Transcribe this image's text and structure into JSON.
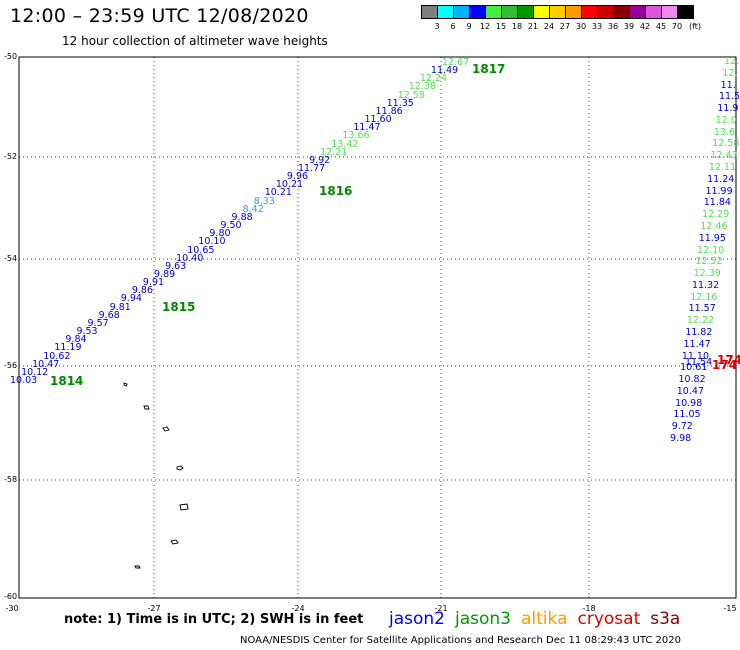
{
  "header": {
    "title": "12:00 – 23:59 UTC 12/08/2020",
    "subtitle": "12 hour collection of altimeter wave heights"
  },
  "colorbar": {
    "colors": [
      "#7f7f7f",
      "#00ffff",
      "#00b2ff",
      "#0000ff",
      "#44ee44",
      "#33bb33",
      "#009900",
      "#ffff00",
      "#ffcc00",
      "#ff9900",
      "#ff0000",
      "#cc0000",
      "#880000",
      "#990099",
      "#dd55dd",
      "#ee88ee",
      "#000000"
    ],
    "labels": [
      "3",
      "6",
      "9",
      "12",
      "15",
      "18",
      "21",
      "24",
      "27",
      "30",
      "33",
      "36",
      "39",
      "42",
      "45",
      "70",
      "(ft)"
    ]
  },
  "axes": {
    "y_labels": [
      "-50",
      "-52",
      "-54",
      "-56",
      "-58",
      "-60"
    ],
    "x_labels": [
      "-30",
      "-27",
      "-24",
      "-21",
      "-18",
      "-15"
    ]
  },
  "swaths": {
    "diagonal": [
      {
        "t": "10.03",
        "c": "#0000cc"
      },
      {
        "t": "10.12",
        "c": "#0000cc"
      },
      {
        "t": "10.47",
        "c": "#0000cc"
      },
      {
        "t": "10.62",
        "c": "#0000cc"
      },
      {
        "t": "11.19",
        "c": "#0000cc"
      },
      {
        "t": "9.84",
        "c": "#0000cc"
      },
      {
        "t": "9.53",
        "c": "#0000cc"
      },
      {
        "t": "9.57",
        "c": "#0000cc"
      },
      {
        "t": "9.68",
        "c": "#0000cc"
      },
      {
        "t": "9.81",
        "c": "#0000cc"
      },
      {
        "t": "9.94",
        "c": "#0000cc"
      },
      {
        "t": "9.86",
        "c": "#0000cc"
      },
      {
        "t": "9.91",
        "c": "#0000cc"
      },
      {
        "t": "9.89",
        "c": "#0000cc"
      },
      {
        "t": "9.63",
        "c": "#0000cc"
      },
      {
        "t": "10.40",
        "c": "#0000cc"
      },
      {
        "t": "10.65",
        "c": "#0000cc"
      },
      {
        "t": "10.10",
        "c": "#0000cc"
      },
      {
        "t": "9.80",
        "c": "#0000cc"
      },
      {
        "t": "9.50",
        "c": "#0000cc"
      },
      {
        "t": "9.88",
        "c": "#0000cc"
      },
      {
        "t": "8.42",
        "c": "#22aadd"
      },
      {
        "t": "8.33",
        "c": "#22aadd"
      },
      {
        "t": "10.21",
        "c": "#0000cc"
      },
      {
        "t": "10.21",
        "c": "#0000cc"
      },
      {
        "t": "9.96",
        "c": "#0000cc"
      },
      {
        "t": "11.77",
        "c": "#0000cc"
      },
      {
        "t": "9.92",
        "c": "#0000cc"
      },
      {
        "t": "12.21",
        "c": "#55dd55"
      },
      {
        "t": "13.42",
        "c": "#55dd55"
      },
      {
        "t": "13.66",
        "c": "#55dd55"
      },
      {
        "t": "11.47",
        "c": "#0000cc"
      },
      {
        "t": "11.60",
        "c": "#0000cc"
      },
      {
        "t": "11.86",
        "c": "#0000cc"
      },
      {
        "t": "11.35",
        "c": "#0000cc"
      },
      {
        "t": "12.58",
        "c": "#55dd55"
      },
      {
        "t": "12.38",
        "c": "#55dd55"
      },
      {
        "t": "12.24",
        "c": "#55dd55"
      },
      {
        "t": "11.49",
        "c": "#0000cc"
      },
      {
        "t": "12.67",
        "c": "#55dd55"
      }
    ],
    "vertical": [
      {
        "t": "12.",
        "c": "#55dd55"
      },
      {
        "t": "12.",
        "c": "#55dd55"
      },
      {
        "t": "11.",
        "c": "#0000cc"
      },
      {
        "t": "11.5",
        "c": "#0000cc"
      },
      {
        "t": "11.9",
        "c": "#0000cc"
      },
      {
        "t": "12.0",
        "c": "#55dd55"
      },
      {
        "t": "13.6",
        "c": "#55dd55"
      },
      {
        "t": "12.58",
        "c": "#55dd55"
      },
      {
        "t": "12.43",
        "c": "#55dd55"
      },
      {
        "t": "12.11",
        "c": "#55dd55"
      },
      {
        "t": "11.24",
        "c": "#0000cc"
      },
      {
        "t": "11.99",
        "c": "#0000cc"
      },
      {
        "t": "11.84",
        "c": "#0000cc"
      },
      {
        "t": "12.29",
        "c": "#55dd55"
      },
      {
        "t": "12.46",
        "c": "#55dd55"
      },
      {
        "t": "11.95",
        "c": "#0000cc"
      },
      {
        "t": "12.10",
        "c": "#55dd55"
      },
      {
        "t": "12.52",
        "c": "#55dd55"
      },
      {
        "t": "12.39",
        "c": "#55dd55"
      },
      {
        "t": "11.32",
        "c": "#0000cc"
      },
      {
        "t": "12.16",
        "c": "#55dd55"
      },
      {
        "t": "11.57",
        "c": "#0000cc"
      },
      {
        "t": "12.22",
        "c": "#55dd55"
      },
      {
        "t": "11.82",
        "c": "#0000cc"
      },
      {
        "t": "11.47",
        "c": "#0000cc"
      },
      {
        "t": "11.10",
        "c": "#0000cc"
      },
      {
        "t": "10.61",
        "c": "#0000cc"
      },
      {
        "t": "10.82",
        "c": "#0000cc"
      },
      {
        "t": "10.47",
        "c": "#0000cc"
      },
      {
        "t": "10.98",
        "c": "#0000cc"
      },
      {
        "t": "11.05",
        "c": "#0000cc"
      },
      {
        "t": "9.72",
        "c": "#0000cc"
      },
      {
        "t": "9.98",
        "c": "#0000cc"
      }
    ]
  },
  "passes": [
    {
      "t": "1814",
      "c": "#008800"
    },
    {
      "t": "1815",
      "c": "#008800"
    },
    {
      "t": "1816",
      "c": "#008800"
    },
    {
      "t": "1817",
      "c": "#008800"
    },
    {
      "t": "174",
      "c": "#dd0000"
    },
    {
      "t": "174",
      "c": "#dd0000"
    }
  ],
  "extra_vertical": [
    {
      "t": "11.54",
      "c": "#0000cc"
    }
  ],
  "note": "note: 1) Time is in UTC; 2) SWH is in feet",
  "legend": [
    {
      "t": "jason2",
      "c": "#0000ff"
    },
    {
      "t": "jason3",
      "c": "#009900"
    },
    {
      "t": "altika",
      "c": "#ff9900"
    },
    {
      "t": "cryosat",
      "c": "#dd0000"
    },
    {
      "t": "s3a",
      "c": "#880000"
    }
  ],
  "footer": "NOAA/NESDIS Center for Satellite Applications and Research    Dec 11 08:29:43 UTC 2020"
}
